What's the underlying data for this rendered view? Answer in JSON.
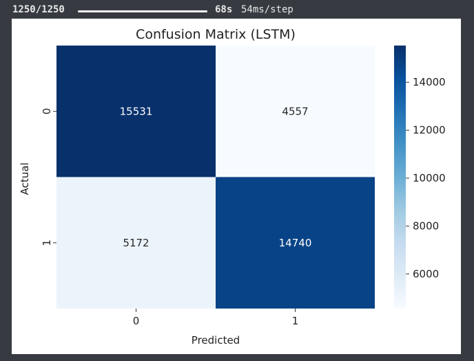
{
  "progress": {
    "steps_text": "1250/1250",
    "fraction": 1.0,
    "time_text": "68s",
    "rate_text": "54ms/step"
  },
  "chart_data": {
    "type": "heatmap",
    "title": "Confusion Matrix (LSTM)",
    "xlabel": "Predicted",
    "ylabel": "Actual",
    "x_categories": [
      "0",
      "1"
    ],
    "y_categories": [
      "0",
      "1"
    ],
    "values": [
      [
        15531,
        4557
      ],
      [
        5172,
        14740
      ]
    ],
    "colormap": "Blues",
    "vmin": 4557,
    "vmax": 15531,
    "colorbar_ticks": [
      6000,
      8000,
      10000,
      12000,
      14000
    ],
    "annotations": true,
    "grid": false
  }
}
